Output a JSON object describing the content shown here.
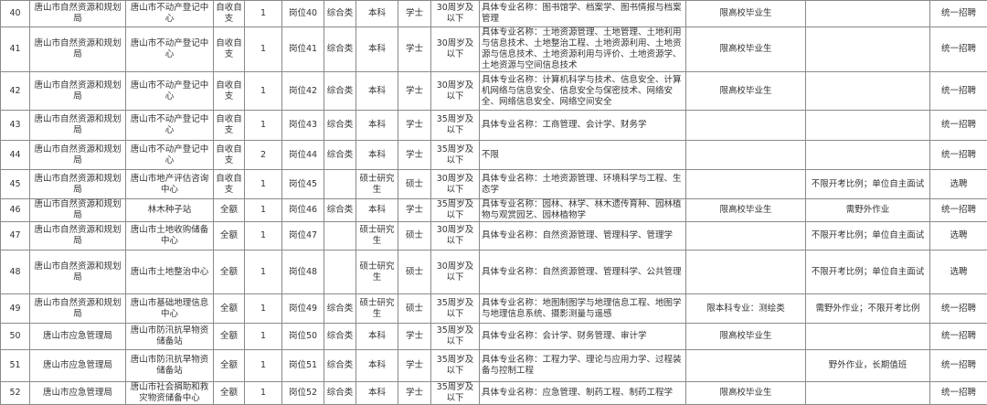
{
  "rows": [
    {
      "no": "40",
      "dept": "唐山市自然资源和规划局",
      "unit": "唐山市不动产登记中心",
      "funding": "自收自支",
      "count": "1",
      "post": "岗位40",
      "category": "综合类",
      "education": "本科",
      "degree": "学士",
      "age": "30周岁及以下",
      "major": "具体专业名称：图书馆学、档案学、图书情报与档案管理",
      "other": "限高校毕业生",
      "note": "",
      "method": "统一招聘"
    },
    {
      "no": "41",
      "dept": "唐山市自然资源和规划局",
      "unit": "唐山市不动产登记中心",
      "funding": "自收自支",
      "count": "1",
      "post": "岗位41",
      "category": "综合类",
      "education": "本科",
      "degree": "学士",
      "age": "30周岁及以下",
      "major": "具体专业名称：土地资源管理、土地管理、土地利用与信息技术、土地整治工程、土地资源利用、土地资源与信息技术、土地资源利用与评价、土地资源学、土地资源与空间信息技术",
      "other": "限高校毕业生",
      "note": "",
      "method": "统一招聘"
    },
    {
      "no": "42",
      "dept": "唐山市自然资源和规划局",
      "unit": "唐山市不动产登记中心",
      "funding": "自收自支",
      "count": "1",
      "post": "岗位42",
      "category": "综合类",
      "education": "本科",
      "degree": "学士",
      "age": "30周岁及以下",
      "major": "具体专业名称：计算机科学与技术、信息安全、计算机网络与信息安全、信息安全与保密技术、网络安全、网络信息安全、网络空间安全",
      "other": "限高校毕业生",
      "note": "",
      "method": "统一招聘"
    },
    {
      "no": "43",
      "dept": "唐山市自然资源和规划局",
      "unit": "唐山市不动产登记中心",
      "funding": "自收自支",
      "count": "1",
      "post": "岗位43",
      "category": "综合类",
      "education": "本科",
      "degree": "学士",
      "age": "35周岁及以下",
      "major": "具体专业名称：工商管理、会计学、财务学",
      "other": "",
      "note": "",
      "method": "统一招聘"
    },
    {
      "no": "44",
      "dept": "唐山市自然资源和规划局",
      "unit": "唐山市不动产登记中心",
      "funding": "自收自支",
      "count": "2",
      "post": "岗位44",
      "category": "综合类",
      "education": "本科",
      "degree": "学士",
      "age": "35周岁及以下",
      "major": "不限",
      "other": "",
      "note": "",
      "method": "统一招聘"
    },
    {
      "no": "45",
      "dept": "唐山市自然资源和规划局",
      "unit": "唐山市地产评估咨询中心",
      "funding": "自收自支",
      "count": "1",
      "post": "岗位45",
      "category": "",
      "education": "硕士研究生",
      "degree": "硕士",
      "age": "30周岁及以下",
      "major": "具体专业名称：土地资源管理、环境科学与工程、生态学",
      "other": "",
      "note": "不限开考比例；单位自主面试",
      "method": "选聘"
    },
    {
      "no": "46",
      "dept": "唐山市自然资源和规划局",
      "unit": "林木种子站",
      "funding": "全额",
      "count": "1",
      "post": "岗位46",
      "category": "综合类",
      "education": "本科",
      "degree": "学士",
      "age": "35周岁及以下",
      "major": "具体专业名称：园林、林学、林木遗传育种、园林植物与观赏园艺、园林植物学",
      "other": "限高校毕业生",
      "note": "需野外作业",
      "method": "统一招聘"
    },
    {
      "no": "47",
      "dept": "唐山市自然资源和规划局",
      "unit": "唐山市土地收购储备中心",
      "funding": "全额",
      "count": "1",
      "post": "岗位47",
      "category": "",
      "education": "硕士研究生",
      "degree": "硕士",
      "age": "30周岁及以下",
      "major": "具体专业名称：自然资源管理、管理科学、管理学",
      "other": "",
      "note": "不限开考比例；单位自主面试",
      "method": "选聘"
    },
    {
      "no": "48",
      "dept": "唐山市自然资源和规划局",
      "unit": "唐山市土地整治中心",
      "funding": "全额",
      "count": "1",
      "post": "岗位48",
      "category": "",
      "education": "硕士研究生",
      "degree": "硕士",
      "age": "30周岁及以下",
      "major": "具体专业名称：自然资源管理、管理科学、公共管理",
      "other": "",
      "note": "不限开考比例；单位自主面试",
      "method": "选聘"
    },
    {
      "no": "49",
      "dept": "唐山市自然资源和规划局",
      "unit": "唐山市基础地理信息中心",
      "funding": "全额",
      "count": "1",
      "post": "岗位49",
      "category": "综合类",
      "education": "硕士研究生",
      "degree": "硕士",
      "age": "35周岁及以下",
      "major": "具体专业名称：地图制图学与地理信息工程、地图学与地理信息系统、摄影测量与遥感",
      "other": "限本科专业：测绘类",
      "note": "需野外作业；不限开考比例",
      "method": "统一招聘"
    },
    {
      "no": "50",
      "dept": "唐山市应急管理局",
      "unit": "唐山市防汛抗旱物资储备站",
      "funding": "全额",
      "count": "1",
      "post": "岗位50",
      "category": "综合类",
      "education": "本科",
      "degree": "学士",
      "age": "35周岁及以下",
      "major": "具体专业名称：会计学、财务管理、审计学",
      "other": "限高校毕业生",
      "note": "",
      "method": "统一招聘"
    },
    {
      "no": "51",
      "dept": "唐山市应急管理局",
      "unit": "唐山市防汛抗旱物资储备站",
      "funding": "全额",
      "count": "1",
      "post": "岗位51",
      "category": "综合类",
      "education": "本科",
      "degree": "学士",
      "age": "35周岁及以下",
      "major": "具体专业名称：工程力学、理论与应用力学、过程装备与控制工程",
      "other": "",
      "note": "野外作业，长期值班",
      "method": "统一招聘"
    },
    {
      "no": "52",
      "dept": "唐山市应急管理局",
      "unit": "唐山市社会捐助和救灾物资储备中心",
      "funding": "全额",
      "count": "1",
      "post": "岗位52",
      "category": "综合类",
      "education": "本科",
      "degree": "学士",
      "age": "35周岁及以下",
      "major": "具体专业名称：应急管理、制药工程、制药工程学",
      "other": "限高校毕业生",
      "note": "",
      "method": "统一招聘"
    }
  ]
}
